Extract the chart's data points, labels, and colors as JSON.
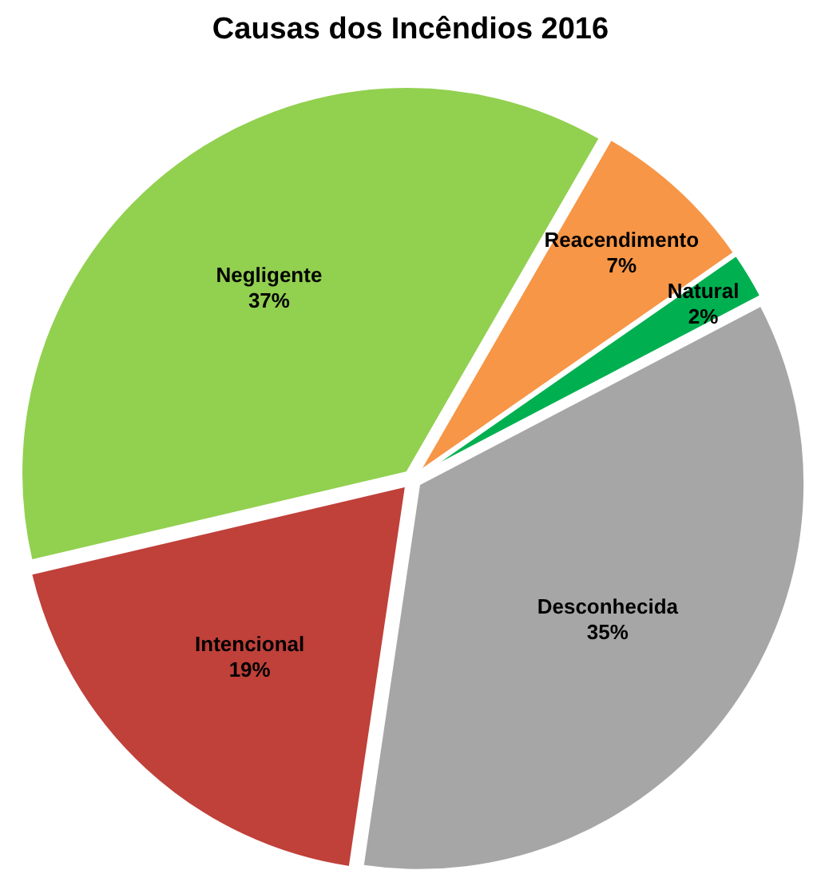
{
  "chart_data": {
    "type": "pie",
    "title": "Causas dos Incêndios 2016",
    "categories": [
      "Reacendimento",
      "Natural",
      "Desconhecida",
      "Intencional",
      "Negligente"
    ],
    "values": [
      7,
      2,
      35,
      19,
      37
    ],
    "colors": [
      "#f79646",
      "#00b050",
      "#a6a6a6",
      "#c0403a",
      "#92d050"
    ],
    "value_labels": [
      "7%",
      "2%",
      "35%",
      "19%",
      "37%"
    ]
  }
}
